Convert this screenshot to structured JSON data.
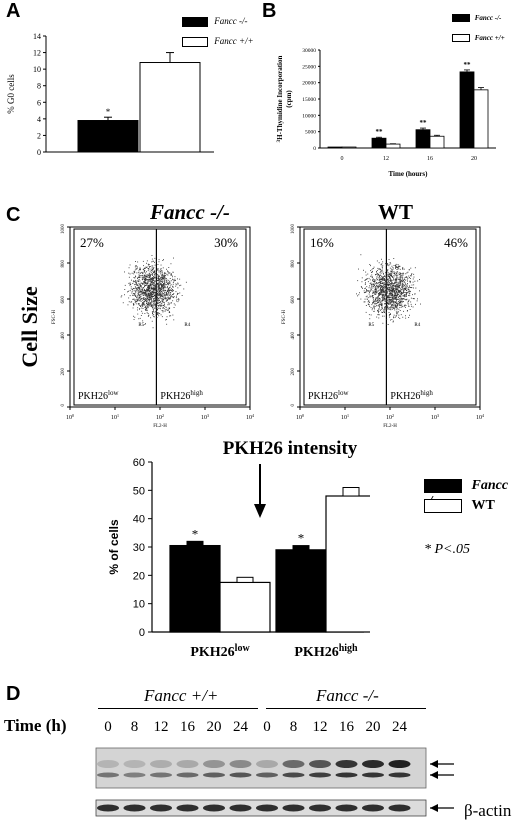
{
  "panels": {
    "a": "A",
    "b": "B",
    "c": "C",
    "d": "D"
  },
  "chart_data": [
    {
      "id": "A",
      "type": "bar",
      "categories": [
        "Fancc -/-",
        "Fancc +/+"
      ],
      "values": [
        3.8,
        10.8
      ],
      "errors": [
        0.4,
        1.2
      ],
      "significance": [
        "*",
        ""
      ],
      "ylabel": "% G0 cells",
      "xlabel": "",
      "ylim": [
        0,
        14
      ],
      "yticks": [
        "0",
        "2",
        "4",
        "6",
        "8",
        "10",
        "12",
        "14"
      ],
      "legend": [
        "Fancc -/-",
        "Fancc +/+"
      ],
      "colors": [
        "#000000",
        "#ffffff"
      ]
    },
    {
      "id": "B",
      "type": "bar",
      "categories": [
        "0",
        "12",
        "16",
        "20"
      ],
      "xlabel": "Time (hours)",
      "ylabel_sup": "3",
      "ylabel_main": "H-Thymidine Incorporation",
      "ylabel_unit": "(cpm)",
      "ylim": [
        0,
        30000
      ],
      "yticks": [
        "0",
        "5000",
        "10000",
        "15000",
        "20000",
        "25000",
        "30000"
      ],
      "series": [
        {
          "name": "Fancc -/-",
          "values": [
            300,
            3000,
            5600,
            23300
          ],
          "errors": [
            0,
            300,
            500,
            600
          ],
          "color": "#000000"
        },
        {
          "name": "Fancc +/+",
          "values": [
            300,
            1200,
            3600,
            17800
          ],
          "errors": [
            0,
            100,
            300,
            700
          ],
          "color": "#ffffff"
        }
      ],
      "significance": [
        "",
        "**",
        "**",
        "**"
      ]
    },
    {
      "id": "C-bottom",
      "type": "bar",
      "categories": [
        "PKH26low",
        "PKH26high"
      ],
      "category_labels": [
        {
          "base": "PKH26",
          "sup": "low"
        },
        {
          "base": "PKH26",
          "sup": "high"
        }
      ],
      "ylabel": "% of cells",
      "ylim": [
        0,
        60
      ],
      "yticks": [
        "0",
        "10",
        "20",
        "30",
        "40",
        "50",
        "60"
      ],
      "series": [
        {
          "name": "Fancc -/-",
          "values": [
            30.5,
            29.0
          ],
          "errors": [
            1.5,
            1.5
          ],
          "color": "#000000"
        },
        {
          "name": "WT",
          "values": [
            17.5,
            48.0
          ],
          "errors": [
            1.8,
            3.0
          ],
          "color": "#ffffff"
        }
      ],
      "significance": [
        "*",
        "*"
      ],
      "annotation": "* P<.05"
    }
  ],
  "flow": {
    "left_title": "Fancc -/-",
    "right_title": "WT",
    "y_side_label": "Cell Size",
    "x_bottom_label": "PKH26 intensity",
    "left_pct_low": "27%",
    "left_pct_high": "30%",
    "right_pct_low": "16%",
    "right_pct_high": "46%",
    "gate_low": "R5",
    "gate_high": "R4",
    "pkh_low_base": "PKH26",
    "pkh_low_sup": "low",
    "pkh_high_base": "PKH26",
    "pkh_high_sup": "high",
    "y_axis_label": "FSC-H",
    "x_axis_label": "FL2-H",
    "y_ticks": [
      "0",
      "200",
      "400",
      "600",
      "800",
      "1000"
    ],
    "x_tick_base": "10",
    "x_tick_exps": [
      "0",
      "1",
      "2",
      "3",
      "4"
    ]
  },
  "blot": {
    "group_left": "Fancc +/+",
    "group_right": "Fancc -/-",
    "time_label": "Time (h)",
    "times_left": [
      "0",
      "8",
      "12",
      "16",
      "20",
      "24"
    ],
    "times_right": [
      "0",
      "8",
      "12",
      "16",
      "20",
      "24"
    ],
    "actin_label": "β-actin"
  }
}
